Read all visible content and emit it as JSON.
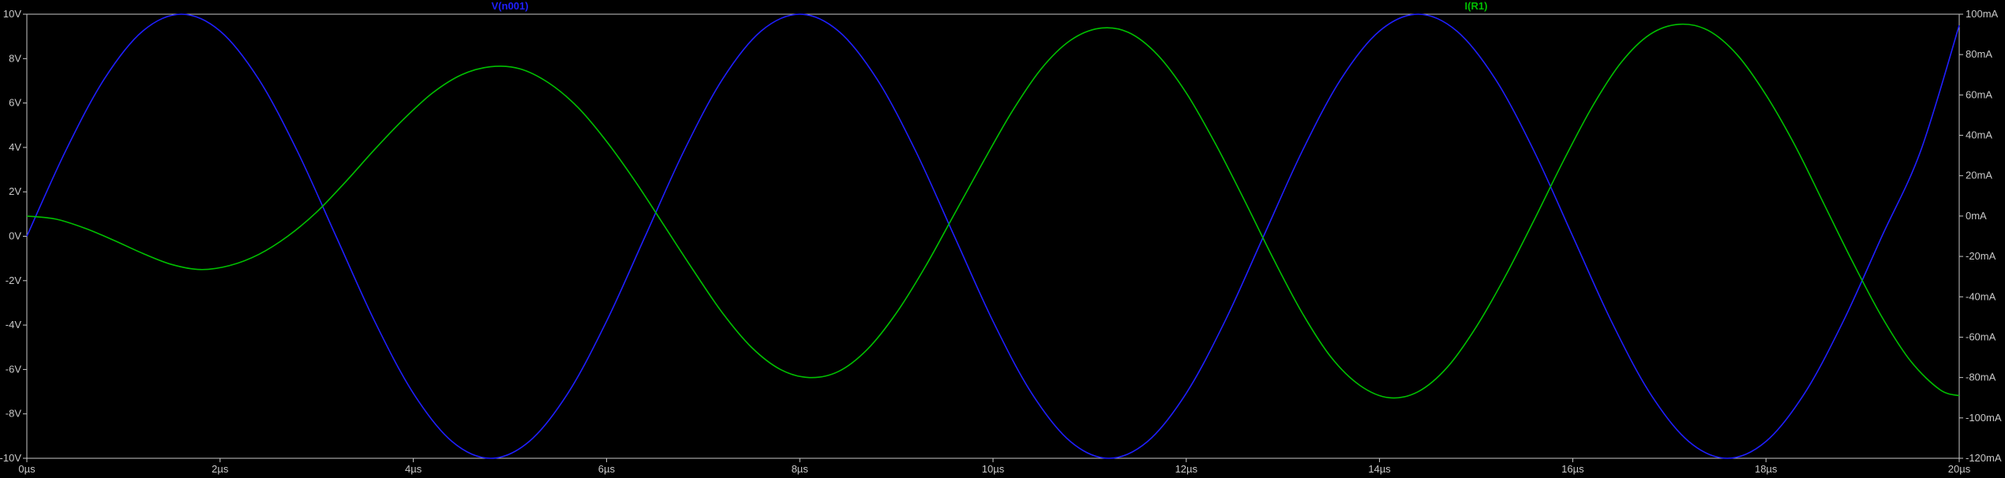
{
  "chart_data": {
    "type": "line",
    "title": "",
    "x_axis": {
      "range": [
        0,
        20
      ],
      "ticks": [
        0,
        2,
        4,
        6,
        8,
        10,
        12,
        14,
        16,
        18,
        20
      ],
      "tick_labels": [
        "0µs",
        "2µs",
        "4µs",
        "6µs",
        "8µs",
        "10µs",
        "12µs",
        "14µs",
        "16µs",
        "18µs",
        "20µs"
      ]
    },
    "y_left_axis": {
      "range": [
        -10,
        10
      ],
      "ticks": [
        -10,
        -8,
        -6,
        -4,
        -2,
        0,
        2,
        4,
        6,
        8,
        10
      ],
      "tick_labels": [
        "-10V",
        "-8V",
        "-6V",
        "-4V",
        "-2V",
        "0V",
        "2V",
        "4V",
        "6V",
        "8V",
        "10V"
      ]
    },
    "y_right_axis": {
      "range": [
        -120,
        100
      ],
      "ticks": [
        -120,
        -100,
        -80,
        -60,
        -40,
        -20,
        0,
        20,
        40,
        60,
        80,
        100
      ],
      "tick_labels": [
        "-120mA",
        "-100mA",
        "-80mA",
        "-60mA",
        "-40mA",
        "-20mA",
        "0mA",
        "20mA",
        "40mA",
        "60mA",
        "80mA",
        "100mA"
      ]
    },
    "series": [
      {
        "name": "V(n001)",
        "color": "#1f1fff",
        "axis": "left",
        "points": [
          [
            0,
            0.0
          ],
          [
            0.4,
            3.83
          ],
          [
            0.8,
            7.07
          ],
          [
            1.2,
            9.24
          ],
          [
            1.6,
            10.0
          ],
          [
            2.0,
            9.24
          ],
          [
            2.4,
            7.07
          ],
          [
            2.8,
            3.83
          ],
          [
            3.2,
            0.0
          ],
          [
            3.6,
            -3.83
          ],
          [
            4.0,
            -7.07
          ],
          [
            4.4,
            -9.24
          ],
          [
            4.8,
            -10.0
          ],
          [
            5.2,
            -9.24
          ],
          [
            5.6,
            -7.07
          ],
          [
            6.0,
            -3.83
          ],
          [
            6.4,
            0.0
          ],
          [
            6.8,
            3.83
          ],
          [
            7.2,
            7.07
          ],
          [
            7.6,
            9.24
          ],
          [
            8.0,
            10.0
          ],
          [
            8.4,
            9.24
          ],
          [
            8.8,
            7.07
          ],
          [
            9.2,
            3.83
          ],
          [
            9.6,
            0.0
          ],
          [
            10.0,
            -3.83
          ],
          [
            10.4,
            -7.07
          ],
          [
            10.8,
            -9.24
          ],
          [
            11.2,
            -10.0
          ],
          [
            11.6,
            -9.24
          ],
          [
            12.0,
            -7.07
          ],
          [
            12.4,
            -3.83
          ],
          [
            12.8,
            0.0
          ],
          [
            13.2,
            3.83
          ],
          [
            13.6,
            7.07
          ],
          [
            14.0,
            9.24
          ],
          [
            14.4,
            10.0
          ],
          [
            14.8,
            9.24
          ],
          [
            15.2,
            7.07
          ],
          [
            15.6,
            3.83
          ],
          [
            16.0,
            0.0
          ],
          [
            16.4,
            -3.83
          ],
          [
            16.8,
            -7.07
          ],
          [
            17.2,
            -9.24
          ],
          [
            17.6,
            -10.0
          ],
          [
            18.0,
            -9.24
          ],
          [
            18.4,
            -7.07
          ],
          [
            18.8,
            -3.83
          ],
          [
            19.2,
            0.0
          ],
          [
            19.6,
            3.83
          ],
          [
            20.0,
            9.5
          ]
        ]
      },
      {
        "name": "I(R1)",
        "color": "#00c000",
        "axis": "right",
        "points": [
          [
            0,
            0.0
          ],
          [
            0.3,
            -1.5
          ],
          [
            0.6,
            -6.0
          ],
          [
            0.9,
            -12.0
          ],
          [
            1.2,
            -18.5
          ],
          [
            1.5,
            -24.0
          ],
          [
            1.8,
            -26.5
          ],
          [
            2.1,
            -24.5
          ],
          [
            2.4,
            -19.0
          ],
          [
            2.7,
            -10.0
          ],
          [
            3.0,
            2.0
          ],
          [
            3.3,
            17.0
          ],
          [
            3.6,
            33.0
          ],
          [
            3.9,
            48.0
          ],
          [
            4.2,
            61.0
          ],
          [
            4.5,
            70.0
          ],
          [
            4.8,
            74.0
          ],
          [
            5.1,
            73.0
          ],
          [
            5.4,
            66.0
          ],
          [
            5.7,
            54.0
          ],
          [
            6.0,
            37.0
          ],
          [
            6.3,
            17.0
          ],
          [
            6.6,
            -5.0
          ],
          [
            6.9,
            -27.0
          ],
          [
            7.2,
            -48.0
          ],
          [
            7.5,
            -65.0
          ],
          [
            7.8,
            -76.0
          ],
          [
            8.1,
            -80.0
          ],
          [
            8.4,
            -77.0
          ],
          [
            8.7,
            -66.0
          ],
          [
            9.0,
            -48.0
          ],
          [
            9.3,
            -25.0
          ],
          [
            9.6,
            1.0
          ],
          [
            9.9,
            27.0
          ],
          [
            10.2,
            52.0
          ],
          [
            10.5,
            73.0
          ],
          [
            10.8,
            87.0
          ],
          [
            11.1,
            93.0
          ],
          [
            11.4,
            91.0
          ],
          [
            11.7,
            80.0
          ],
          [
            12.0,
            61.0
          ],
          [
            12.3,
            36.0
          ],
          [
            12.6,
            8.0
          ],
          [
            12.9,
            -21.0
          ],
          [
            13.2,
            -48.0
          ],
          [
            13.5,
            -70.0
          ],
          [
            13.8,
            -84.0
          ],
          [
            14.1,
            -90.0
          ],
          [
            14.4,
            -87.0
          ],
          [
            14.7,
            -75.0
          ],
          [
            15.0,
            -55.0
          ],
          [
            15.3,
            -30.0
          ],
          [
            15.6,
            -2.0
          ],
          [
            15.9,
            27.0
          ],
          [
            16.2,
            54.0
          ],
          [
            16.5,
            76.0
          ],
          [
            16.8,
            90.0
          ],
          [
            17.1,
            95.0
          ],
          [
            17.4,
            92.0
          ],
          [
            17.7,
            80.0
          ],
          [
            18.0,
            60.0
          ],
          [
            18.3,
            35.0
          ],
          [
            18.6,
            6.0
          ],
          [
            18.9,
            -23.0
          ],
          [
            19.2,
            -50.0
          ],
          [
            19.5,
            -72.0
          ],
          [
            19.8,
            -86.0
          ],
          [
            20.0,
            -89.0
          ]
        ]
      }
    ],
    "grid": false,
    "legend": "top"
  },
  "colors": {
    "background": "#000000",
    "frame": "#c8c8c8",
    "tick_text": "#c8c8c8"
  }
}
